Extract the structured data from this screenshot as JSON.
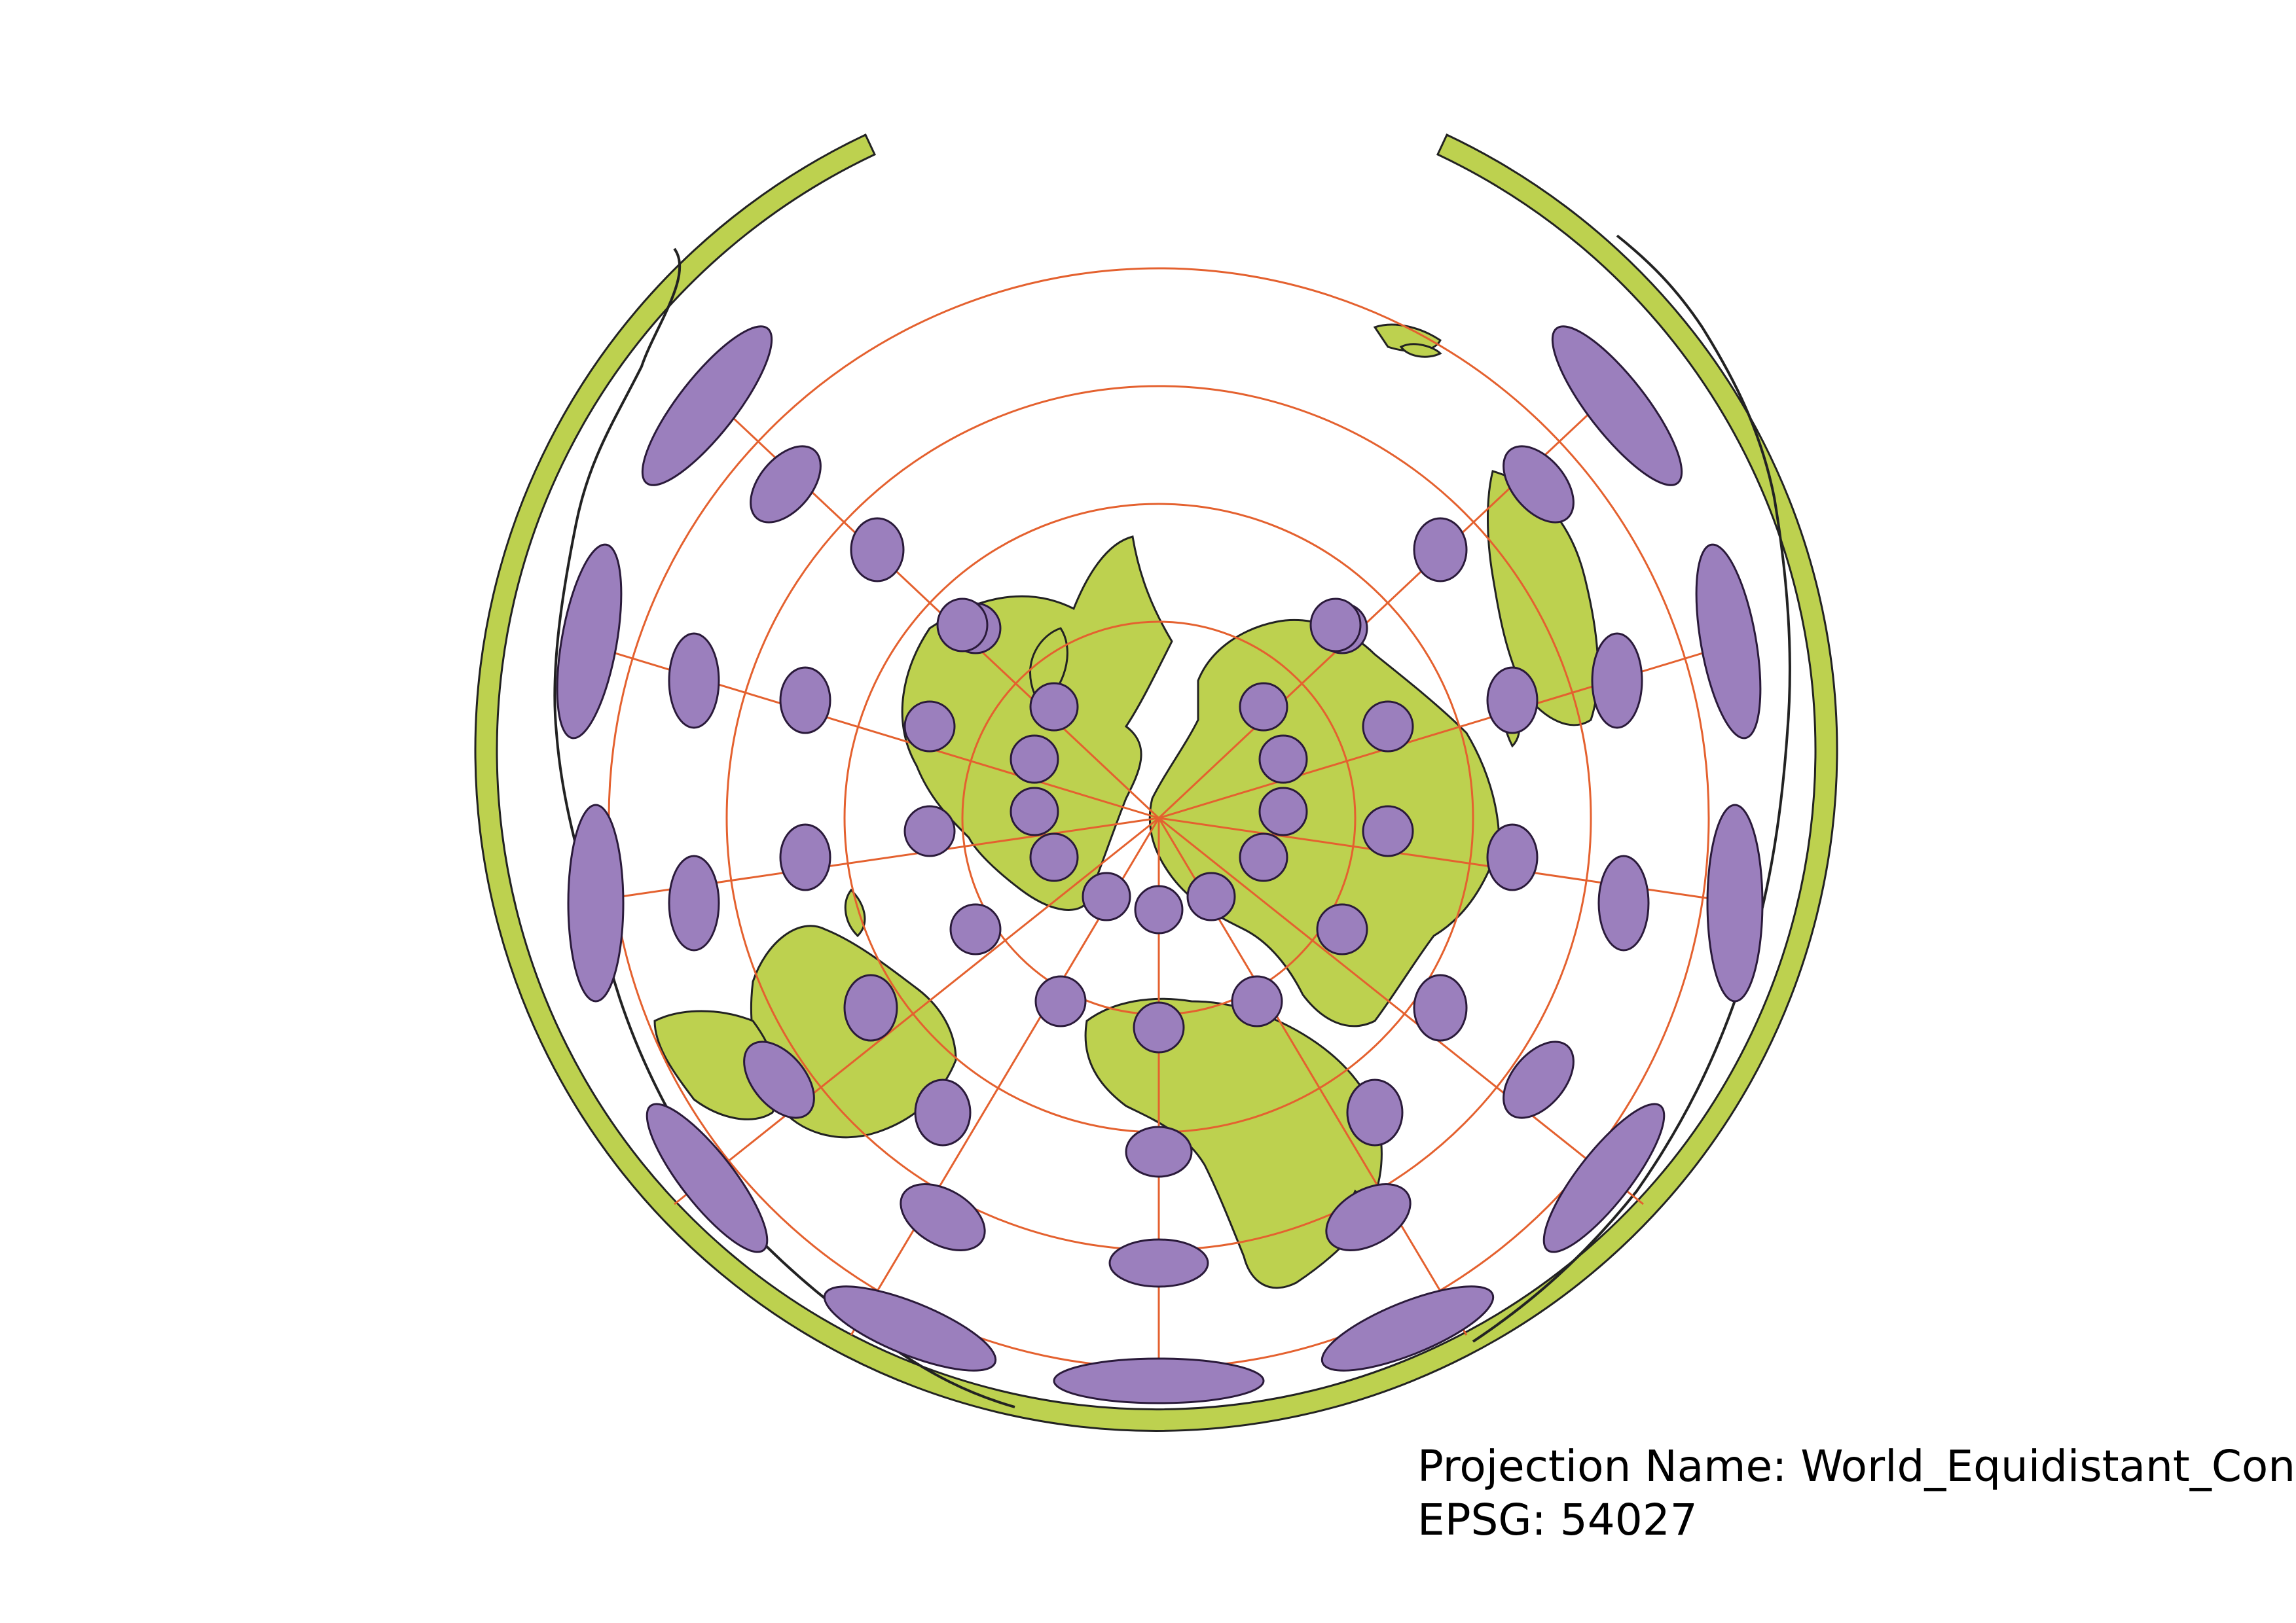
{
  "map": {
    "projection_name_text": "Projection Name: World_Equidistant_Conic",
    "epsg_text": "EPSG: 54027",
    "colors": {
      "land": "#bdd14f",
      "land_outline": "#222222",
      "graticule": "#e4612f",
      "tissot": "#9b7fbd",
      "tissot_outline": "#2a1a3a",
      "background": "#ffffff"
    },
    "layers": [
      "land",
      "graticule",
      "tissot-indicatrix",
      "projection-label"
    ]
  }
}
